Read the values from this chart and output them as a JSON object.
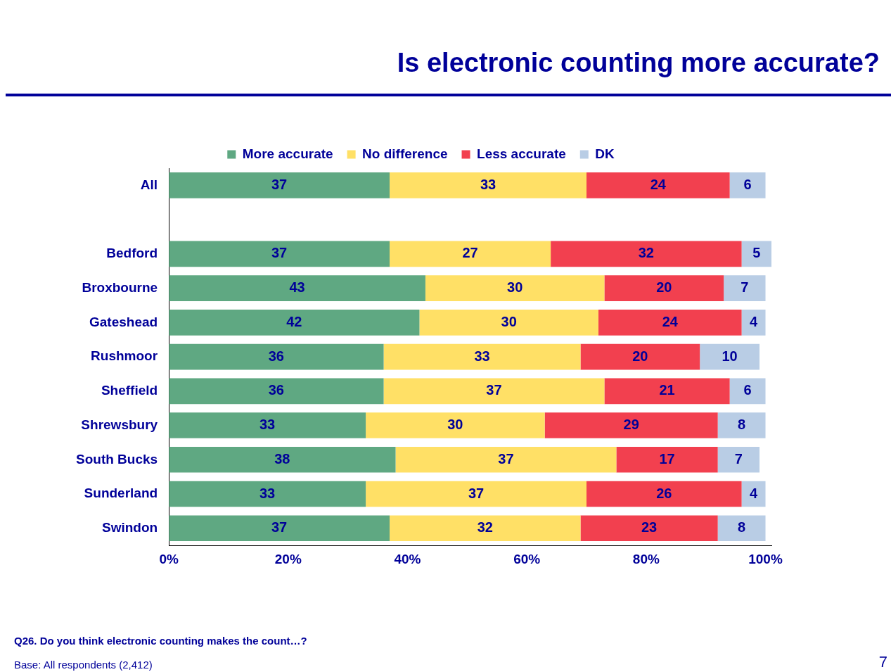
{
  "chart_data": {
    "type": "bar",
    "orientation": "horizontal",
    "stacked": true,
    "title": "Is electronic counting more accurate?",
    "categories": [
      "All",
      null,
      "Bedford",
      "Broxbourne",
      "Gateshead",
      "Rushmoor",
      "Sheffield",
      "Shrewsbury",
      "South Bucks",
      "Sunderland",
      "Swindon"
    ],
    "series": [
      {
        "name": "More accurate",
        "color": "#5fa882",
        "values": [
          37,
          null,
          37,
          43,
          42,
          36,
          36,
          33,
          38,
          33,
          37
        ]
      },
      {
        "name": "No difference",
        "color": "#ffe066",
        "values": [
          33,
          null,
          27,
          30,
          30,
          33,
          37,
          30,
          37,
          37,
          32
        ]
      },
      {
        "name": "Less accurate",
        "color": "#f2404f",
        "values": [
          24,
          null,
          32,
          20,
          24,
          20,
          21,
          29,
          17,
          26,
          23
        ]
      },
      {
        "name": "DK",
        "color": "#b9cde5",
        "values": [
          6,
          null,
          5,
          7,
          4,
          10,
          6,
          8,
          7,
          4,
          8
        ]
      }
    ],
    "xlim": [
      0,
      101
    ],
    "xticks": [
      {
        "value": 0,
        "label": "0%"
      },
      {
        "value": 20,
        "label": "20%"
      },
      {
        "value": 40,
        "label": "40%"
      },
      {
        "value": 60,
        "label": "60%"
      },
      {
        "value": 80,
        "label": "80%"
      },
      {
        "value": 100,
        "label": "100%"
      }
    ],
    "data_labels": true,
    "legend": "top",
    "grid": false,
    "annotations": [
      "Q26. Do you think electronic counting makes the count…?",
      "Base: All respondents (2,412)",
      "7"
    ]
  }
}
